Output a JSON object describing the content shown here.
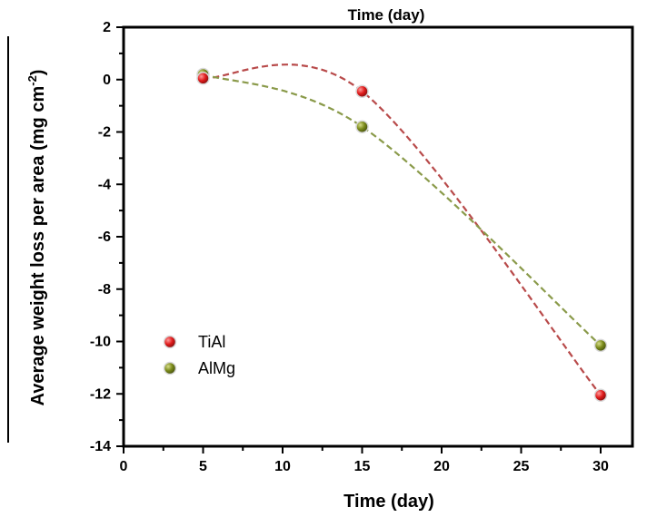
{
  "chart_data": {
    "type": "scatter",
    "title": "Time (day)",
    "xlabel": "Time (day)",
    "ylabel": "Average weight loss per area (mg cm",
    "ylabel_sup": "-2",
    "ylabel_close": ")",
    "xlim": [
      0,
      32
    ],
    "ylim": [
      -14,
      2
    ],
    "xticks": [
      0,
      5,
      10,
      15,
      20,
      25,
      30
    ],
    "yticks": [
      2,
      0,
      -2,
      -4,
      -6,
      -8,
      -10,
      -12,
      -14
    ],
    "grid": false,
    "legend_position": "bottom-left",
    "series": [
      {
        "name": "TiAl",
        "color": "#e01b1b",
        "line_color": "#b84a4a",
        "x": [
          5,
          15,
          30
        ],
        "y": [
          0.05,
          -0.45,
          -12.05
        ]
      },
      {
        "name": "AlMg",
        "color": "#7a8a1a",
        "line_color": "#8a9a4a",
        "x": [
          5,
          15,
          30
        ],
        "y": [
          0.2,
          -1.8,
          -10.15
        ]
      }
    ]
  }
}
